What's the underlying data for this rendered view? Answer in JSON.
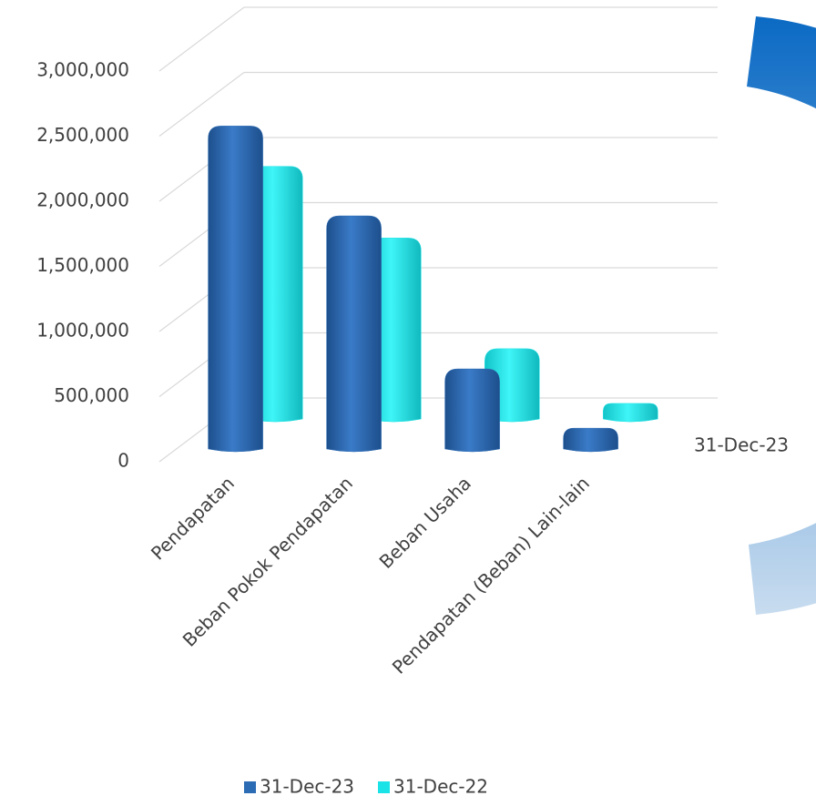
{
  "chart_data": {
    "type": "bar3d",
    "categories": [
      "Pendapatan",
      "Beban Pokok Pendapatan",
      "Beban Usaha",
      "Pendapatan (Beban) Lain-lain"
    ],
    "series": [
      {
        "name": "31-Dec-23",
        "color": "#2b6cb5",
        "values": [
          2480000,
          1790000,
          615000,
          160000
        ]
      },
      {
        "name": "31-Dec-22",
        "color": "#19e3e6",
        "values": [
          1940000,
          1390000,
          540000,
          120000
        ]
      }
    ],
    "ylim": [
      0,
      3000000
    ],
    "yticks": [
      0,
      {
        "value": 500000,
        "label": "500,000"
      },
      {
        "value": 1000000,
        "label": "1,000,000"
      },
      {
        "value": 1500000,
        "label": "1,500,000"
      },
      {
        "value": 2000000,
        "label": "2,000,000"
      },
      {
        "value": 2500000,
        "label": "2,500,000"
      },
      {
        "value": 3000000,
        "label": "3,000,000"
      }
    ],
    "grid": true,
    "legend": "bottom",
    "annotation": "31-Dec-23"
  }
}
